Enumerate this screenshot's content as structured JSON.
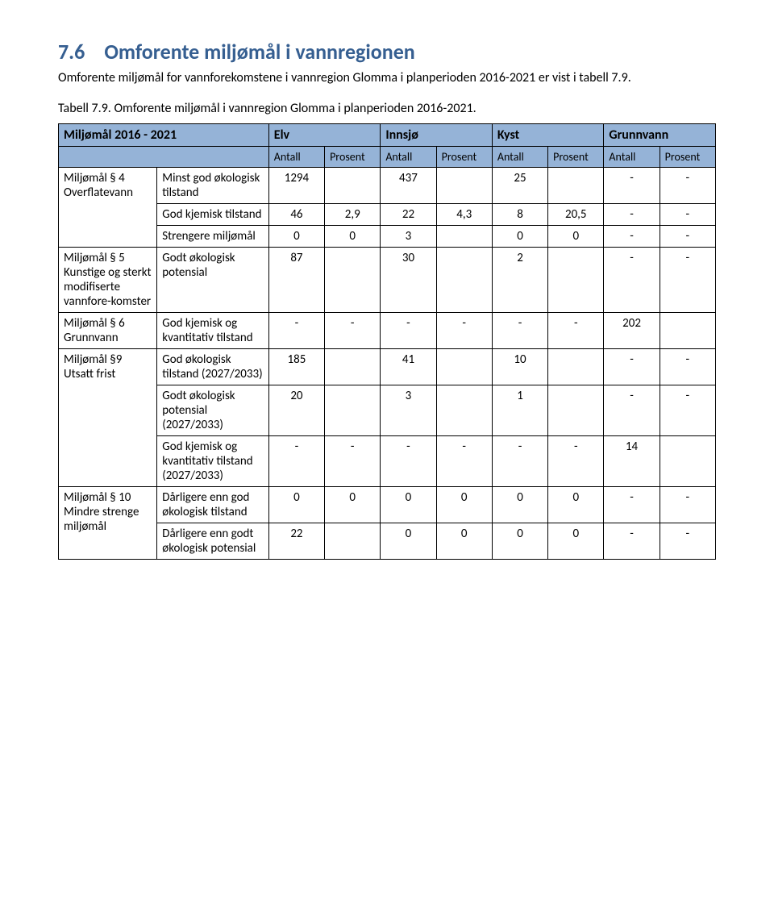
{
  "heading": {
    "number": "7.6",
    "title": "Omforente miljømål i vannregionen"
  },
  "paragraph": "Omforente miljømål for vannforekomstene i vannregion Glomma i planperioden 2016-2021 er vist i tabell 7.9.",
  "caption": "Tabell 7.9. Omforente miljømål i vannregion Glomma i planperioden 2016-2021.",
  "table": {
    "header_background": "#95b3d7",
    "border_color": "#000000",
    "top_head": [
      "Miljømål 2016 - 2021",
      "Elv",
      "Innsjø",
      "Kyst",
      "Grunnvann"
    ],
    "sub_head": [
      "Antall",
      "Prosent",
      "Antall",
      "Prosent",
      "Antall",
      "Prosent",
      "Antall",
      "Prosent"
    ],
    "groups": [
      {
        "key": "Miljømål § 4 Overflatevann",
        "rows": [
          {
            "desc": "Minst god økologisk tilstand",
            "cells": [
              "1294",
              "",
              "437",
              "",
              "25",
              "",
              "-",
              "-"
            ]
          },
          {
            "desc": "God kjemisk tilstand",
            "cells": [
              "46",
              "2,9",
              "22",
              "4,3",
              "8",
              "20,5",
              "-",
              "-"
            ]
          },
          {
            "desc": "Strengere miljømål",
            "cells": [
              "0",
              "0",
              "3",
              "",
              "0",
              "0",
              "-",
              "-"
            ]
          }
        ]
      },
      {
        "key": "Miljømål § 5 Kunstige og sterkt modifiserte vannfore-komster",
        "rows": [
          {
            "desc": "Godt økologisk potensial",
            "cells": [
              "87",
              "",
              "30",
              "",
              "2",
              "",
              "-",
              "-"
            ]
          }
        ]
      },
      {
        "key": "Miljømål § 6 Grunnvann",
        "rows": [
          {
            "desc": "God kjemisk og kvantitativ tilstand",
            "cells": [
              "-",
              "-",
              "-",
              "-",
              "-",
              "-",
              "202",
              ""
            ]
          }
        ]
      },
      {
        "key": "Miljømål §9 Utsatt frist",
        "rows": [
          {
            "desc": "God økologisk tilstand (2027/2033)",
            "cells": [
              "185",
              "",
              "41",
              "",
              "10",
              "",
              "-",
              "-"
            ]
          },
          {
            "desc": "Godt økologisk potensial (2027/2033)",
            "cells": [
              "20",
              "",
              "3",
              "",
              "1",
              "",
              "-",
              "-"
            ]
          },
          {
            "desc": "God kjemisk og kvantitativ tilstand (2027/2033)",
            "cells": [
              "-",
              "-",
              "-",
              "-",
              "-",
              "-",
              "14",
              ""
            ]
          }
        ]
      },
      {
        "key": "Miljømål § 10 Mindre strenge miljømål",
        "rows": [
          {
            "desc": "Dårligere enn god økologisk tilstand",
            "cells": [
              "0",
              "0",
              "0",
              "0",
              "0",
              "0",
              "-",
              "-"
            ]
          },
          {
            "desc": "Dårligere enn godt økologisk potensial",
            "cells": [
              "22",
              "",
              "0",
              "0",
              "0",
              "0",
              "-",
              "-"
            ]
          }
        ]
      }
    ]
  }
}
